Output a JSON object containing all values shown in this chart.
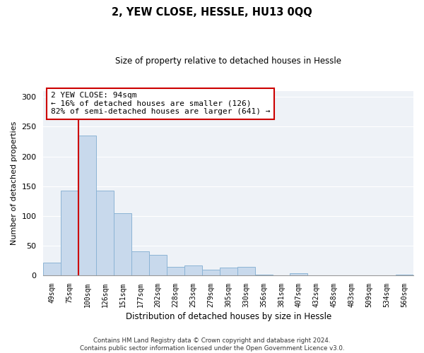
{
  "title": "2, YEW CLOSE, HESSLE, HU13 0QQ",
  "subtitle": "Size of property relative to detached houses in Hessle",
  "xlabel": "Distribution of detached houses by size in Hessle",
  "ylabel": "Number of detached properties",
  "bar_color": "#c8d9ec",
  "bar_edge_color": "#8cb4d5",
  "vline_color": "#cc0000",
  "categories": [
    "49sqm",
    "75sqm",
    "100sqm",
    "126sqm",
    "151sqm",
    "177sqm",
    "202sqm",
    "228sqm",
    "253sqm",
    "279sqm",
    "305sqm",
    "330sqm",
    "356sqm",
    "381sqm",
    "407sqm",
    "432sqm",
    "458sqm",
    "483sqm",
    "509sqm",
    "534sqm",
    "560sqm"
  ],
  "values": [
    21,
    143,
    235,
    143,
    105,
    41,
    34,
    14,
    17,
    10,
    13,
    14,
    1,
    0,
    4,
    0,
    0,
    0,
    0,
    0,
    1
  ],
  "ylim": [
    0,
    310
  ],
  "yticks": [
    0,
    50,
    100,
    150,
    200,
    250,
    300
  ],
  "annotation_title": "2 YEW CLOSE: 94sqm",
  "annotation_line1": "← 16% of detached houses are smaller (126)",
  "annotation_line2": "82% of semi-detached houses are larger (641) →",
  "footer_line1": "Contains HM Land Registry data © Crown copyright and database right 2024.",
  "footer_line2": "Contains public sector information licensed under the Open Government Licence v3.0.",
  "bg_color": "#eef2f7",
  "vline_index": 1.5
}
